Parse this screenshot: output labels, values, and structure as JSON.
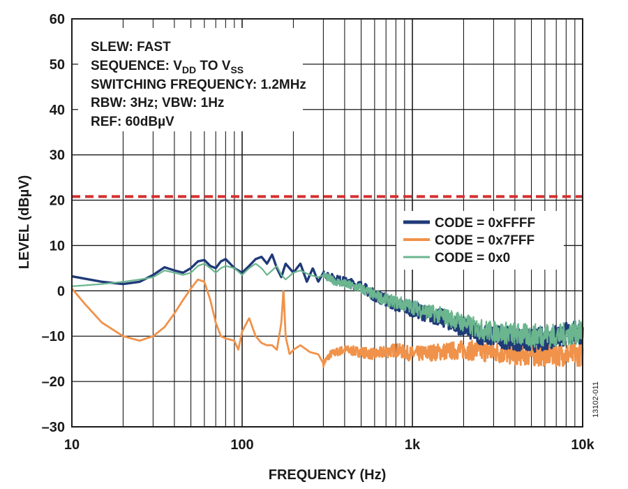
{
  "chart_data": {
    "type": "line",
    "xscale": "log",
    "xlim": [
      10,
      10000
    ],
    "ylim": [
      -30,
      60
    ],
    "x_ticks": [
      10,
      100,
      1000,
      10000
    ],
    "x_tick_labels": [
      "10",
      "100",
      "1k",
      "10k"
    ],
    "y_ticks": [
      -30,
      -20,
      -10,
      0,
      10,
      20,
      30,
      40,
      50,
      60
    ],
    "y_tick_labels": [
      "–30",
      "–20",
      "–10",
      "0",
      "10",
      "20",
      "30",
      "40",
      "50",
      "60"
    ],
    "xlabel": "FREQUENCY (Hz)",
    "ylabel": "LEVEL (dBµV)",
    "grid": true,
    "limit_line": {
      "y": 20.8,
      "color": "#d62f2f",
      "style": "dashed"
    },
    "annotation": {
      "slew": "SLEW: FAST",
      "sequence_prefix": "SEQUENCE: V",
      "sequence_sub1": "DD",
      "sequence_mid": " TO V",
      "sequence_sub2": "SS",
      "switching": "SWITCHING FREQUENCY: 1.2MHz",
      "rbw": "RBW: 3Hz; VBW: 1Hz",
      "ref": "REF: 60dBµV"
    },
    "legend_position": "right",
    "figure_id": "13102-011",
    "series": [
      {
        "name": "CODE = 0xFFFF",
        "color": "#1f3a78",
        "x": [
          10,
          15,
          20,
          25,
          30,
          35,
          40,
          45,
          50,
          55,
          60,
          65,
          70,
          75,
          80,
          85,
          90,
          100,
          110,
          120,
          130,
          140,
          150,
          160,
          170,
          180,
          200,
          220,
          240,
          260,
          280,
          300,
          330,
          360,
          400,
          450,
          500,
          600,
          700,
          800,
          1000,
          1200,
          1500,
          2000,
          2500,
          3000,
          4000,
          5000,
          6000,
          7000,
          8000,
          10000
        ],
        "values": [
          3.2,
          2.0,
          1.5,
          2.0,
          3.5,
          5.2,
          4.5,
          4.0,
          5.0,
          6.5,
          6.8,
          5.5,
          5.0,
          6.5,
          7.0,
          6.0,
          5.0,
          4.0,
          5.5,
          7.0,
          7.5,
          6.0,
          8.0,
          5.0,
          3.0,
          6.0,
          4.0,
          6.0,
          2.0,
          5.0,
          2.0,
          4.0,
          3.0,
          2.5,
          2.0,
          1.5,
          1.0,
          -1.0,
          -2.0,
          -3.0,
          -4.0,
          -5.0,
          -6.0,
          -8.0,
          -9.5,
          -10.0,
          -10.5,
          -11.0,
          -10.5,
          -10.0,
          -9.5,
          -9.0
        ]
      },
      {
        "name": "CODE = 0x7FFF",
        "color": "#f0924a",
        "x": [
          10,
          12,
          15,
          20,
          25,
          30,
          35,
          40,
          45,
          50,
          55,
          60,
          65,
          70,
          75,
          80,
          90,
          95,
          100,
          110,
          120,
          130,
          140,
          150,
          160,
          170,
          175,
          180,
          190,
          200,
          220,
          250,
          280,
          300,
          330,
          360,
          400,
          500,
          600,
          800,
          1000,
          2000,
          3000,
          5000,
          10000
        ],
        "values": [
          0.5,
          -3.0,
          -7.0,
          -10.0,
          -11.0,
          -10.0,
          -8.0,
          -5.0,
          -2.0,
          0.5,
          2.5,
          2.0,
          -2.0,
          -7.0,
          -10.0,
          -10.5,
          -11.0,
          -13.0,
          -9.0,
          -6.0,
          -10.0,
          -11.5,
          -12.0,
          -12.0,
          -13.0,
          -7.0,
          0.5,
          -10.0,
          -14.0,
          -13.0,
          -12.0,
          -13.5,
          -14.0,
          -16.0,
          -14.0,
          -13.5,
          -13.0,
          -13.5,
          -14.0,
          -13.0,
          -14.0,
          -13.0,
          -13.5,
          -14.0,
          -14.0
        ]
      },
      {
        "name": "CODE = 0x0",
        "color": "#6bb58f",
        "x": [
          10,
          15,
          20,
          25,
          30,
          35,
          40,
          45,
          50,
          55,
          60,
          65,
          70,
          75,
          80,
          90,
          100,
          110,
          120,
          130,
          140,
          150,
          160,
          170,
          180,
          200,
          220,
          250,
          280,
          300,
          330,
          360,
          400,
          450,
          500,
          600,
          700,
          800,
          1000,
          1200,
          1500,
          2000,
          2500,
          3000,
          4000,
          5000,
          6000,
          7000,
          8000,
          10000
        ],
        "values": [
          1.0,
          1.5,
          2.0,
          2.5,
          3.0,
          4.5,
          4.0,
          3.5,
          4.0,
          5.5,
          6.0,
          5.0,
          4.0,
          5.0,
          5.5,
          5.0,
          3.5,
          5.0,
          6.0,
          5.0,
          3.5,
          4.5,
          5.5,
          3.5,
          2.5,
          4.0,
          4.5,
          3.5,
          3.0,
          3.5,
          2.5,
          2.0,
          1.5,
          1.0,
          0.5,
          -1.0,
          -2.0,
          -2.5,
          -3.5,
          -4.5,
          -5.5,
          -7.0,
          -8.5,
          -9.0,
          -9.5,
          -10.0,
          -9.5,
          -10.0,
          -9.5,
          -9.0
        ]
      }
    ]
  }
}
